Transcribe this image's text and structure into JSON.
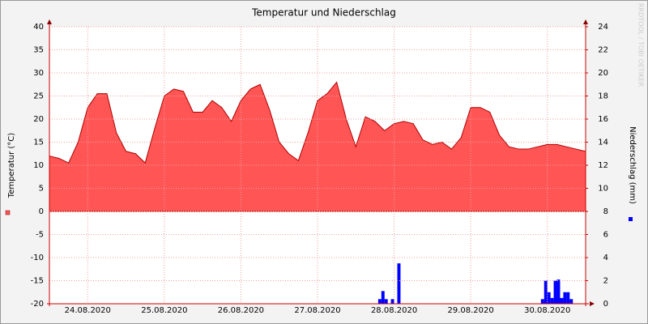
{
  "chart_data": {
    "type": "area-bar",
    "title": "Temperatur und Niederschlag",
    "ylabel": "Temperatur (°C)",
    "y2label": "Niederschlag (mm)",
    "watermark": "RRDTOOL / TOBI OETIKER",
    "xlim": [
      0,
      168
    ],
    "xticks": [
      {
        "value": 12,
        "label": "24.08.2020"
      },
      {
        "value": 36,
        "label": "25.08.2020"
      },
      {
        "value": 60,
        "label": "26.08.2020"
      },
      {
        "value": 84,
        "label": "27.08.2020"
      },
      {
        "value": 108,
        "label": "28.08.2020"
      },
      {
        "value": 132,
        "label": "29.08.2020"
      },
      {
        "value": 156,
        "label": "30.08.2020"
      }
    ],
    "ylim": [
      -20,
      40
    ],
    "yticks": [
      -20,
      -15,
      -10,
      -5,
      0,
      5,
      10,
      15,
      20,
      25,
      30,
      35,
      40
    ],
    "y2lim": [
      0,
      24
    ],
    "y2ticks": [
      0,
      2,
      4,
      6,
      8,
      10,
      12,
      14,
      16,
      18,
      20,
      22,
      24
    ],
    "grid": true,
    "series": [
      {
        "type": "area",
        "color": "#ff5555",
        "x": [
          0,
          3,
          6,
          9,
          12,
          15,
          18,
          21,
          24,
          27,
          30,
          33,
          36,
          39,
          42,
          45,
          48,
          51,
          54,
          57,
          60,
          63,
          66,
          69,
          72,
          75,
          78,
          81,
          84,
          87,
          90,
          93,
          96,
          99,
          102,
          105,
          108,
          111,
          114,
          117,
          120,
          123,
          126,
          129,
          132,
          135,
          138,
          141,
          144,
          147,
          150,
          153,
          156,
          159,
          162,
          165,
          168
        ],
        "values": [
          12,
          11.5,
          10.5,
          15,
          22.5,
          25.5,
          25.5,
          17,
          13,
          12.5,
          10.5,
          18,
          25,
          26.5,
          26,
          21.5,
          21.5,
          24,
          22.5,
          19.5,
          24,
          26.5,
          27.5,
          22,
          15,
          12.5,
          11,
          17,
          24,
          25.5,
          28,
          20,
          14,
          20.5,
          19.5,
          17.5,
          19,
          19.5,
          19,
          15.5,
          14.5,
          15,
          13.5,
          16,
          22.5,
          22.5,
          21.5,
          16.5,
          14,
          13.5,
          13.5,
          14,
          14.5,
          14.5,
          14,
          13.5,
          13
        ]
      },
      {
        "type": "bar",
        "axis": "y2",
        "color": "#0000ff",
        "x": [
          103,
          104,
          105,
          107,
          109,
          154,
          155,
          156,
          157,
          158,
          159,
          160,
          161,
          162,
          163
        ],
        "values": [
          0.4,
          1.1,
          0.4,
          0.4,
          3.5,
          0.4,
          2,
          1,
          0.5,
          2,
          2.1,
          0.5,
          1,
          1,
          0.4
        ]
      }
    ]
  }
}
